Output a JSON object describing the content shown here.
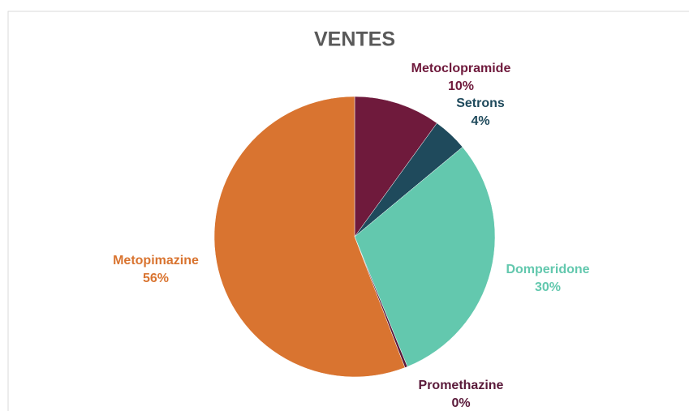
{
  "chart_data": {
    "type": "pie",
    "title": "VENTES",
    "categories": [
      "Metoclopramide",
      "Setrons",
      "Domperidone",
      "Promethazine",
      "Metopimazine"
    ],
    "values": [
      10,
      4,
      30,
      0.3,
      56
    ],
    "value_labels": [
      "10%",
      "4%",
      "30%",
      "0%",
      "56%"
    ],
    "colors": [
      "#6f1a3c",
      "#1f4a5c",
      "#63c8ae",
      "#5a1a3a",
      "#d97430"
    ]
  }
}
